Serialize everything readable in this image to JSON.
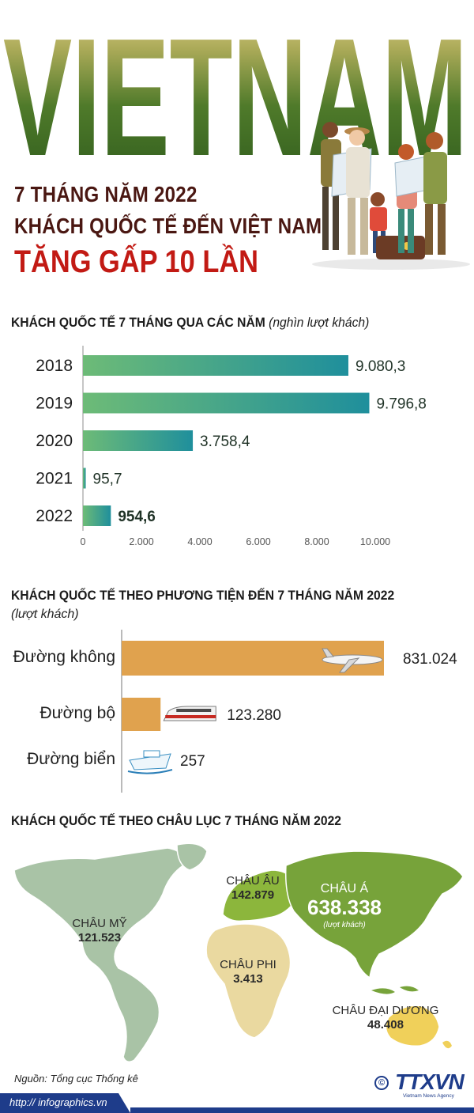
{
  "header": {
    "big_title": "VIETNAM",
    "line1": "7 THÁNG NĂM 2022",
    "line2": "KHÁCH QUỐC TẾ ĐẾN VIỆT NAM",
    "line3": "TĂNG GẤP 10 LẦN"
  },
  "section1": {
    "title": "KHÁCH QUỐC TẾ 7 THÁNG QUA CÁC NĂM",
    "unit": "(nghìn lượt khách)"
  },
  "section2": {
    "title": "KHÁCH QUỐC TẾ THEO PHƯƠNG TIỆN ĐẾN 7 THÁNG NĂM 2022",
    "unit": "(lượt khách)"
  },
  "section3": {
    "title": "KHÁCH QUỐC TẾ THEO CHÂU LỤC 7 THÁNG NĂM 2022"
  },
  "chart_data": [
    {
      "type": "bar",
      "orientation": "horizontal",
      "categories": [
        "2018",
        "2019",
        "2020",
        "2021",
        "2022"
      ],
      "values": [
        9080.3,
        9796.8,
        3758.4,
        95.7,
        954.6
      ],
      "value_labels": [
        "9.080,3",
        "9.796,8",
        "3.758,4",
        "95,7",
        "954,6"
      ],
      "ticks": [
        0,
        2000,
        4000,
        6000,
        8000,
        10000
      ],
      "tick_labels": [
        "0",
        "2.000",
        "4.000",
        "6.000",
        "8.000",
        "10.000"
      ],
      "xlim": [
        0,
        10000
      ],
      "colors": {
        "bar_start": "#6dbb77",
        "bar_end": "#1f8f9c"
      }
    },
    {
      "type": "bar",
      "orientation": "horizontal",
      "categories": [
        "Đường không",
        "Đường bộ",
        "Đường  biển"
      ],
      "values": [
        831024,
        123280,
        257
      ],
      "value_labels": [
        "831.024",
        "123.280",
        "257"
      ],
      "icons": [
        "airplane-icon",
        "train-icon",
        "ship-icon"
      ],
      "colors": {
        "bar": "#e0a24e"
      }
    },
    {
      "type": "table",
      "rows": [
        {
          "name": "CHÂU MỸ",
          "value": 121523,
          "label": "121.523"
        },
        {
          "name": "CHÂU ÂU",
          "value": 142879,
          "label": "142.879"
        },
        {
          "name": "CHÂU Á",
          "value": 638338,
          "label": "638.338",
          "unit": "(lượt khách)"
        },
        {
          "name": "CHÂU PHI",
          "value": 3413,
          "label": "3.413"
        },
        {
          "name": "CHÂU ĐẠI DƯƠNG",
          "value": 48408,
          "label": "48.408"
        }
      ],
      "colors": {
        "americas": "#a9c3a6",
        "europe": "#8cb63c",
        "asia": "#77a33a",
        "africa": "#ead9a0",
        "oceania": "#f0d05a"
      }
    }
  ],
  "footer": {
    "source": "Nguồn: Tổng cục Thống kê",
    "url": "http:// infographics.vn",
    "copyright": "©",
    "brand": "TTXVN",
    "brand_sub": "Vietnam News Agency"
  }
}
